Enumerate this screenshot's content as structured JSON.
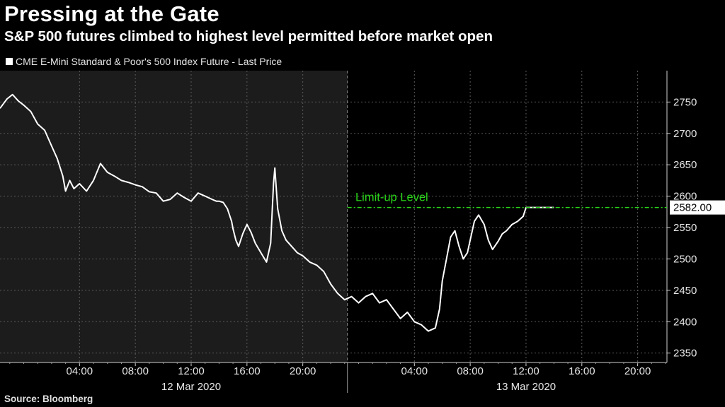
{
  "header": {
    "title": "Pressing at the Gate",
    "subtitle": "S&P 500 futures climbed to highest level permitted before market open",
    "legend_label": "CME E-Mini Standard & Poor's 500 Index Future - Last Price",
    "source": "Source: Bloomberg"
  },
  "colors": {
    "background": "#000000",
    "shaded_session": "#1c1c1c",
    "series": "#ffffff",
    "limit_line": "#2bd61a",
    "grid": "#5a5a5a"
  },
  "chart_data": {
    "type": "line",
    "title": "Pressing at the Gate",
    "subtitle": "S&P 500 futures climbed to highest level permitted before market open",
    "x_unit": "hours from 12 Mar 2020 00:00",
    "xlim": [
      -1.7,
      46.1
    ],
    "ylim": [
      2335,
      2800
    ],
    "y_ticks": [
      2350,
      2400,
      2450,
      2500,
      2550,
      2600,
      2650,
      2700,
      2750
    ],
    "x_ticks": [
      {
        "value": 4,
        "label": "04:00"
      },
      {
        "value": 8,
        "label": "08:00"
      },
      {
        "value": 12,
        "label": "12:00"
      },
      {
        "value": 16,
        "label": "16:00"
      },
      {
        "value": 20,
        "label": "20:00"
      },
      {
        "value": 28,
        "label": "04:00"
      },
      {
        "value": 32,
        "label": "08:00"
      },
      {
        "value": 36,
        "label": "12:00"
      },
      {
        "value": 40,
        "label": "16:00"
      },
      {
        "value": 44,
        "label": "20:00"
      }
    ],
    "x_groups": [
      {
        "label": "12 Mar 2020",
        "center": 12
      },
      {
        "label": "13 Mar 2020",
        "center": 36
      }
    ],
    "day_boundary": 24,
    "shaded_range": [
      -1.7,
      23.2
    ],
    "grid": true,
    "legend_position": "top-left",
    "series": [
      {
        "name": "CME E-Mini Standard & Poor's 500 Index Future - Last Price",
        "x": [
          -1.7,
          -1.2,
          -0.8,
          -0.4,
          0,
          0.5,
          1.0,
          1.5,
          2.0,
          2.4,
          2.8,
          3.0,
          3.3,
          3.6,
          4.0,
          4.5,
          5.0,
          5.5,
          6.0,
          6.5,
          7.0,
          7.5,
          8.0,
          8.5,
          9.0,
          9.5,
          10.0,
          10.5,
          11.0,
          11.5,
          12.0,
          12.5,
          13.0,
          13.5,
          13.8,
          14.0,
          14.3,
          14.6,
          14.9,
          15.0,
          15.2,
          15.4,
          15.7,
          16.0,
          16.3,
          16.6,
          17.0,
          17.4,
          17.7,
          17.9,
          18.0,
          18.2,
          18.5,
          18.8,
          19.2,
          19.6,
          20.0,
          20.5,
          21.0,
          21.5,
          22.0,
          22.5,
          23.0,
          23.5,
          24.0,
          24.5,
          25.0,
          25.5,
          26.0,
          26.5,
          27.0,
          27.5,
          28.0,
          28.5,
          29.0,
          29.5,
          29.8,
          30.0,
          30.3,
          30.6,
          30.9,
          31.2,
          31.5,
          31.8,
          32.0,
          32.3,
          32.6,
          33.0,
          33.3,
          33.6,
          34.0,
          34.3,
          34.6,
          35.0,
          35.4,
          35.8,
          36.0,
          36.4,
          36.7,
          37.0,
          37.5,
          38.0
        ],
        "y": [
          2740,
          2755,
          2762,
          2752,
          2745,
          2735,
          2715,
          2705,
          2680,
          2660,
          2632,
          2608,
          2625,
          2612,
          2620,
          2608,
          2625,
          2652,
          2638,
          2632,
          2625,
          2622,
          2618,
          2615,
          2607,
          2605,
          2592,
          2595,
          2605,
          2598,
          2592,
          2605,
          2600,
          2595,
          2592,
          2592,
          2590,
          2580,
          2560,
          2548,
          2530,
          2520,
          2540,
          2555,
          2542,
          2525,
          2510,
          2495,
          2525,
          2620,
          2645,
          2580,
          2545,
          2530,
          2520,
          2510,
          2505,
          2495,
          2490,
          2480,
          2460,
          2445,
          2435,
          2440,
          2430,
          2440,
          2445,
          2430,
          2435,
          2420,
          2405,
          2415,
          2400,
          2395,
          2385,
          2390,
          2420,
          2465,
          2500,
          2535,
          2545,
          2520,
          2500,
          2510,
          2530,
          2560,
          2570,
          2555,
          2530,
          2515,
          2528,
          2540,
          2545,
          2555,
          2560,
          2568,
          2582,
          2582,
          2582,
          2582,
          2582,
          2582
        ]
      }
    ],
    "annotations": [
      {
        "type": "hline",
        "y": 2582,
        "label": "Limit-up Level",
        "value_label": "2582.00",
        "style": "dash-dot"
      }
    ]
  }
}
